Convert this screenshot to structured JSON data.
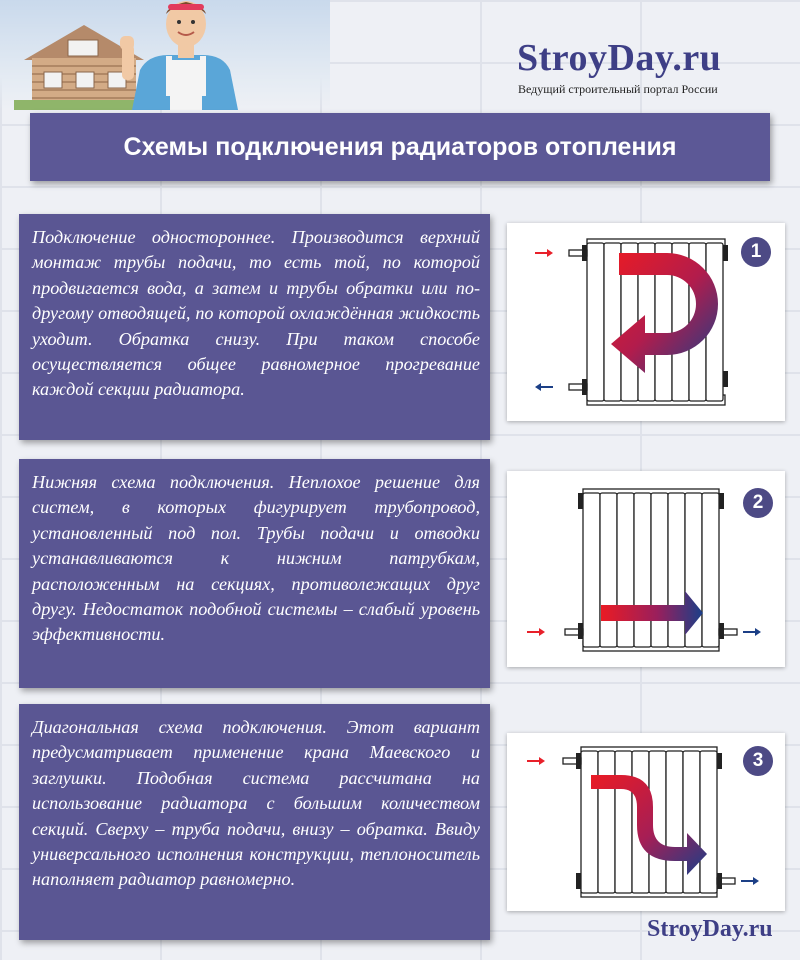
{
  "header": {
    "logo": "StroyDay.ru",
    "tagline": "Ведущий строительный портал России"
  },
  "title": "Схемы подключения радиаторов отопления",
  "schemes": [
    {
      "number": "1",
      "text": "Подключение одностороннее. Производится верхний монтаж трубы подачи, то есть той, по которой продвигается вода, а затем и трубы обратки или по-другому отводящей, по которой охлаждённая жидкость уходит. Обратка снизу. При таком способе осуществляется общее равномерное прогревание каждой секции радиатора."
    },
    {
      "number": "2",
      "text": "Нижняя схема подключения. Неплохое решение для систем, в которых фигурирует трубопровод, установленный под пол. Трубы подачи и отводки устанавливаются к нижним патрубкам, расположенным на секциях, противолежащих друг другу. Недостаток подобной системы – слабый уровень эффективности."
    },
    {
      "number": "3",
      "text": "Диагональная схема подключения. Этот вариант предусматривает применение крана Маевского и заглушки. Подобная система рассчитана на использование радиатора с большим количеством секций. Сверху – труба подачи, внизу – обратка. Ввиду универсального исполнения конструкции, теплоноситель наполняет радиатор равномерно."
    }
  ],
  "footer": {
    "logo": "StroyDay.ru"
  },
  "colors": {
    "brand": "#3e3f86",
    "card": "#5a5693",
    "supply": "#e8202a",
    "return": "#1c3f86"
  }
}
